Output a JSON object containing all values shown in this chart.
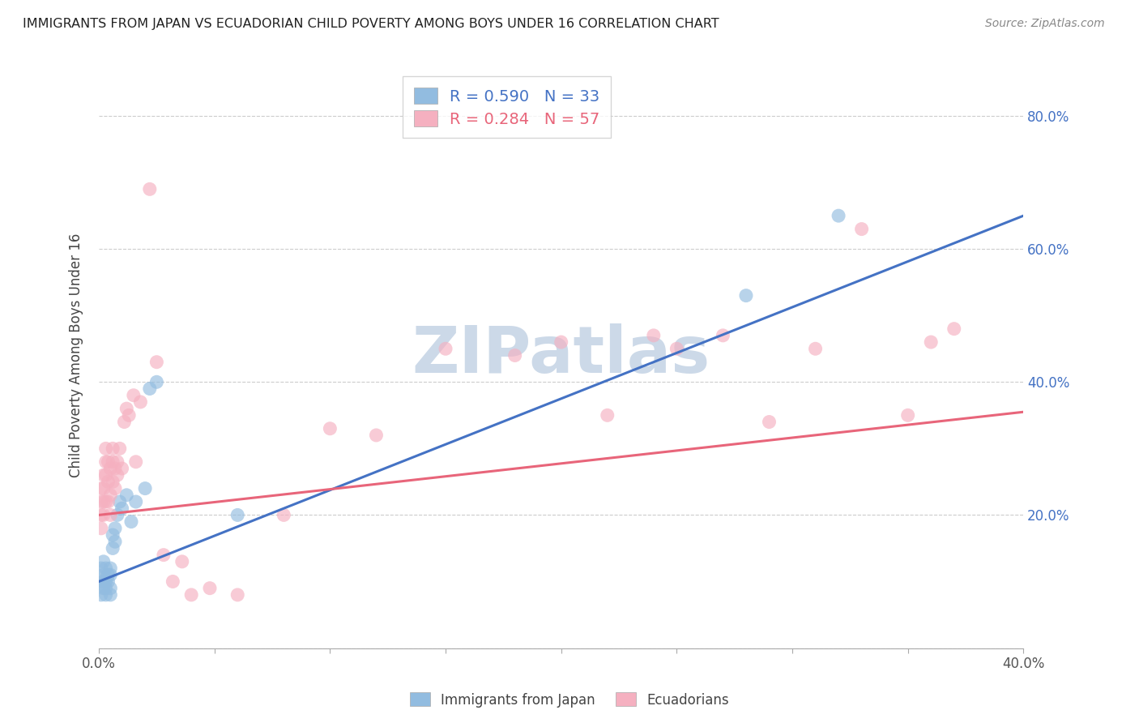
{
  "title": "IMMIGRANTS FROM JAPAN VS ECUADORIAN CHILD POVERTY AMONG BOYS UNDER 16 CORRELATION CHART",
  "source": "Source: ZipAtlas.com",
  "ylabel": "Child Poverty Among Boys Under 16",
  "xlim": [
    0.0,
    0.4
  ],
  "ylim": [
    0.0,
    0.88
  ],
  "xticks": [
    0.0,
    0.05,
    0.1,
    0.15,
    0.2,
    0.25,
    0.3,
    0.35,
    0.4
  ],
  "xtick_labels_show": [
    "0.0%",
    "",
    "",
    "",
    "",
    "",
    "",
    "",
    "40.0%"
  ],
  "yticks_right": [
    0.2,
    0.4,
    0.6,
    0.8
  ],
  "ytick_labels_right": [
    "20.0%",
    "40.0%",
    "60.0%",
    "80.0%"
  ],
  "blue_R": 0.59,
  "blue_N": 33,
  "pink_R": 0.284,
  "pink_N": 57,
  "blue_color": "#92bce0",
  "pink_color": "#f5b0c0",
  "blue_line_color": "#4472c4",
  "pink_line_color": "#e8657a",
  "watermark": "ZIPatlas",
  "watermark_color": "#ccd9e8",
  "blue_scatter_x": [
    0.001,
    0.001,
    0.001,
    0.002,
    0.002,
    0.002,
    0.002,
    0.003,
    0.003,
    0.003,
    0.003,
    0.004,
    0.004,
    0.005,
    0.005,
    0.005,
    0.005,
    0.006,
    0.006,
    0.007,
    0.007,
    0.008,
    0.009,
    0.01,
    0.012,
    0.014,
    0.016,
    0.02,
    0.022,
    0.025,
    0.06,
    0.28,
    0.32
  ],
  "blue_scatter_y": [
    0.08,
    0.1,
    0.12,
    0.09,
    0.1,
    0.11,
    0.13,
    0.1,
    0.12,
    0.08,
    0.09,
    0.11,
    0.1,
    0.08,
    0.09,
    0.11,
    0.12,
    0.15,
    0.17,
    0.16,
    0.18,
    0.2,
    0.22,
    0.21,
    0.23,
    0.19,
    0.22,
    0.24,
    0.39,
    0.4,
    0.2,
    0.53,
    0.65
  ],
  "pink_scatter_x": [
    0.001,
    0.001,
    0.001,
    0.001,
    0.002,
    0.002,
    0.002,
    0.002,
    0.003,
    0.003,
    0.003,
    0.003,
    0.004,
    0.004,
    0.004,
    0.005,
    0.005,
    0.005,
    0.006,
    0.006,
    0.006,
    0.007,
    0.007,
    0.008,
    0.008,
    0.009,
    0.01,
    0.011,
    0.012,
    0.013,
    0.015,
    0.016,
    0.018,
    0.022,
    0.025,
    0.028,
    0.032,
    0.036,
    0.04,
    0.048,
    0.06,
    0.08,
    0.1,
    0.12,
    0.15,
    0.18,
    0.2,
    0.22,
    0.24,
    0.25,
    0.27,
    0.29,
    0.31,
    0.33,
    0.35,
    0.36,
    0.37
  ],
  "pink_scatter_y": [
    0.18,
    0.2,
    0.22,
    0.24,
    0.2,
    0.22,
    0.24,
    0.26,
    0.22,
    0.26,
    0.28,
    0.3,
    0.22,
    0.25,
    0.28,
    0.2,
    0.23,
    0.27,
    0.25,
    0.28,
    0.3,
    0.24,
    0.27,
    0.26,
    0.28,
    0.3,
    0.27,
    0.34,
    0.36,
    0.35,
    0.38,
    0.28,
    0.37,
    0.69,
    0.43,
    0.14,
    0.1,
    0.13,
    0.08,
    0.09,
    0.08,
    0.2,
    0.33,
    0.32,
    0.45,
    0.44,
    0.46,
    0.35,
    0.47,
    0.45,
    0.47,
    0.34,
    0.45,
    0.63,
    0.35,
    0.46,
    0.48
  ],
  "blue_line_x0": 0.0,
  "blue_line_y0": 0.1,
  "blue_line_x1": 0.4,
  "blue_line_y1": 0.65,
  "pink_line_x0": 0.0,
  "pink_line_y0": 0.2,
  "pink_line_x1": 0.4,
  "pink_line_y1": 0.355,
  "legend_label_blue": "Immigrants from Japan",
  "legend_label_pink": "Ecuadorians",
  "background_color": "#ffffff",
  "grid_color": "#cccccc",
  "grid_linestyle": "--"
}
